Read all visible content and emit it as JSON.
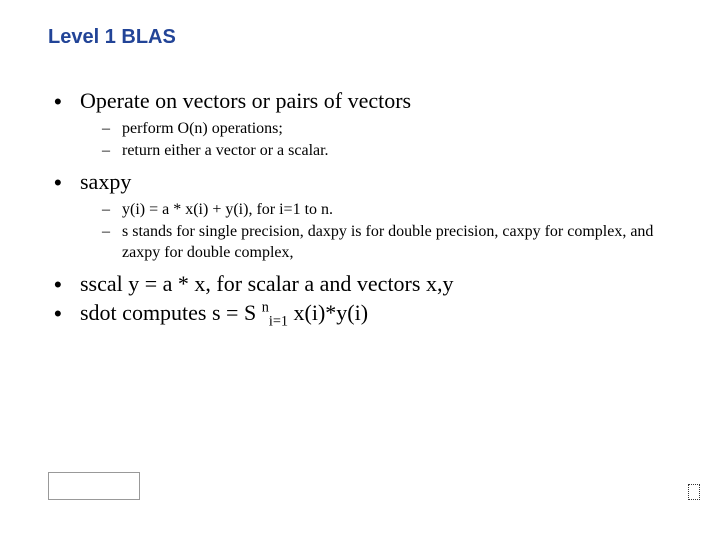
{
  "title": "Level 1 BLAS",
  "colors": {
    "heading": "#224497",
    "body": "#000000",
    "background": "#ffffff"
  },
  "fonts": {
    "heading_family": "Verdana",
    "body_family": "Comic Sans MS",
    "title_size_pt": 20,
    "main_size_pt": 22,
    "sub_size_pt": 16
  },
  "bullets": [
    {
      "text": "Operate on vectors or pairs of vectors",
      "sub": [
        "perform O(n) operations;",
        "return either a vector or a scalar."
      ]
    },
    {
      "text": "saxpy",
      "sub": [
        "y(i) = a * x(i) + y(i), for i=1 to n.",
        "s stands for single precision, daxpy is for double precision, caxpy for complex, and zaxpy for double complex,"
      ]
    },
    {
      "text": "sscal y = a * x, for scalar a and vectors x,y",
      "sub": []
    },
    {
      "text_prefix": "sdot computes s = S ",
      "sup": "n",
      "sub_idx": "i=1",
      "text_suffix": " x(i)*y(i)",
      "sub": []
    }
  ]
}
